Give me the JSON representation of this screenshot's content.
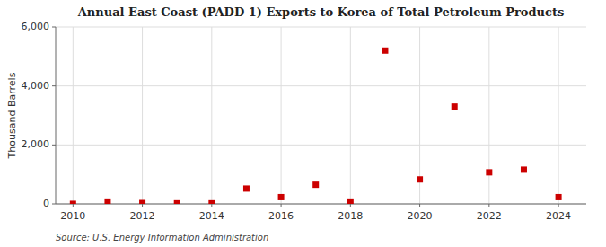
{
  "chart_data": {
    "type": "scatter",
    "title": "Annual East Coast (PADD 1) Exports to Korea of Total Petroleum Products",
    "ylabel": "Thousand Barrels",
    "annotations": [
      "Source: U.S. Energy Information Administration"
    ],
    "x": [
      2010,
      2011,
      2012,
      2013,
      2014,
      2015,
      2016,
      2017,
      2018,
      2019,
      2020,
      2021,
      2022,
      2023,
      2024
    ],
    "values": [
      2,
      50,
      30,
      20,
      20,
      520,
      230,
      650,
      50,
      5200,
      830,
      3300,
      1070,
      1160,
      230
    ],
    "color": "#cc0000",
    "marker": "square",
    "xlim": [
      2009.5,
      2024.8
    ],
    "xticks": [
      2010,
      2012,
      2014,
      2016,
      2018,
      2020,
      2022,
      2024
    ],
    "ylim": [
      0,
      6000
    ],
    "yticks": [
      {
        "value": 0,
        "label": "0"
      },
      {
        "value": 2000,
        "label": "2,000"
      },
      {
        "value": 4000,
        "label": "4,000"
      },
      {
        "value": 6000,
        "label": "6,000"
      }
    ],
    "grid": true
  }
}
